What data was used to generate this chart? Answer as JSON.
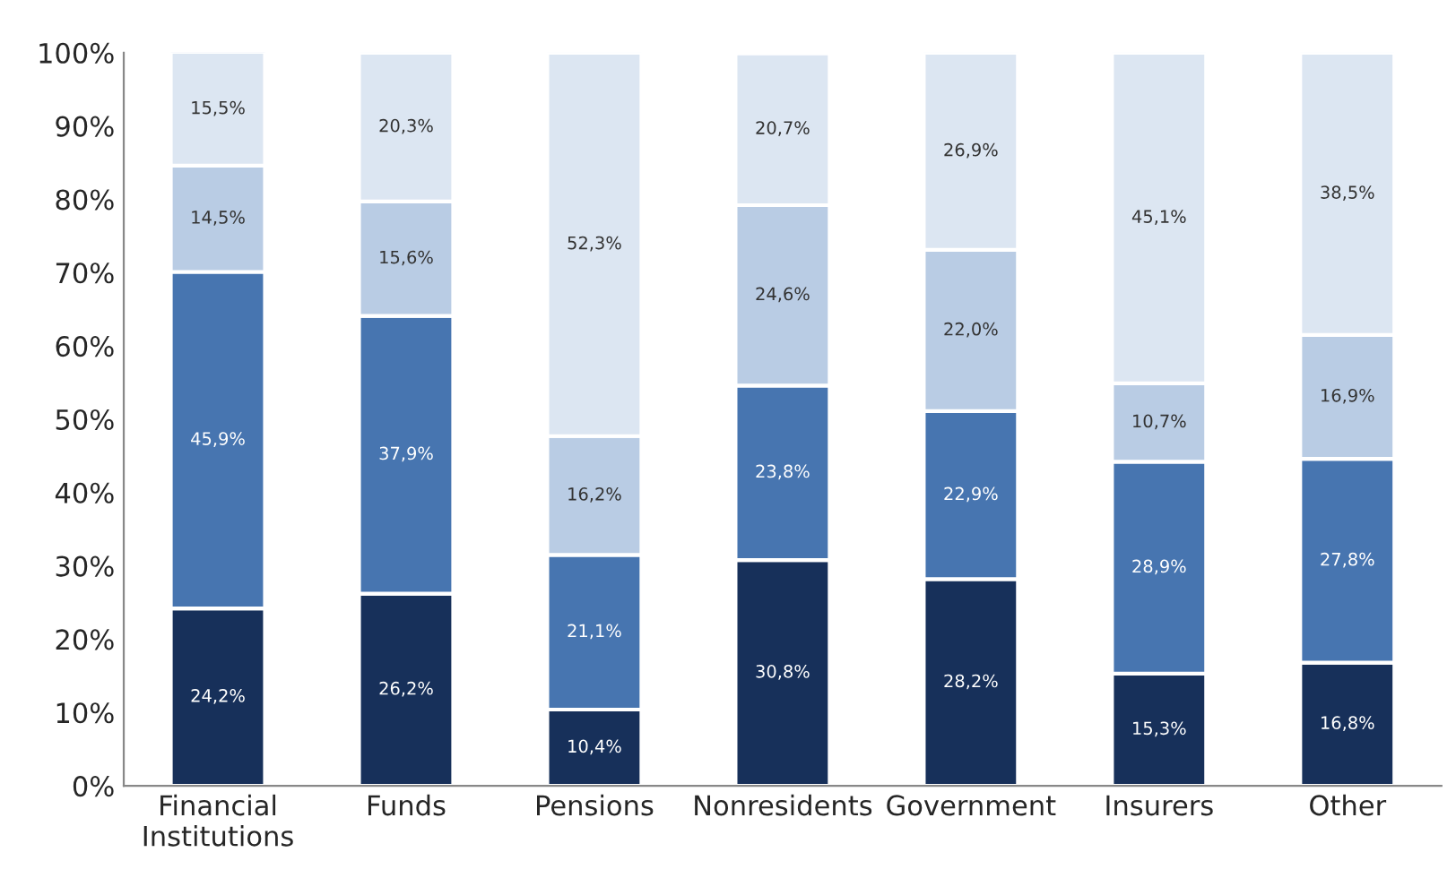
{
  "chart_data": {
    "type": "bar",
    "stacked": true,
    "categories": [
      "Financial\nInstitutions",
      "Funds",
      "Pensions",
      "Nonresidents",
      "Government",
      "Insurers",
      "Other"
    ],
    "series": [
      {
        "color": "#17305a",
        "values": [
          24.2,
          26.2,
          10.4,
          30.8,
          28.2,
          15.3,
          16.8
        ],
        "value_labels": [
          "24,2%",
          "26,2%",
          "10,4%",
          "30,8%",
          "28,2%",
          "15,3%",
          "16,8%"
        ]
      },
      {
        "color": "#4775b0",
        "values": [
          45.9,
          37.9,
          21.1,
          23.8,
          22.9,
          28.9,
          27.8
        ],
        "value_labels": [
          "45,9%",
          "37,9%",
          "21,1%",
          "23,8%",
          "22,9%",
          "28,9%",
          "27,8%"
        ]
      },
      {
        "color": "#b9cce4",
        "values": [
          14.5,
          15.6,
          16.2,
          24.6,
          22.0,
          10.7,
          16.9
        ],
        "value_labels": [
          "14,5%",
          "15,6%",
          "16,2%",
          "24,6%",
          "22,0%",
          "10,7%",
          "16,9%"
        ]
      },
      {
        "color": "#dce6f2",
        "values": [
          15.5,
          20.3,
          52.3,
          20.7,
          26.9,
          45.1,
          38.5
        ],
        "value_labels": [
          "15,5%",
          "20,3%",
          "52,3%",
          "20,7%",
          "26,9%",
          "45,1%",
          "38,5%"
        ]
      }
    ],
    "ylim": [
      0,
      100
    ],
    "yticks": [
      {
        "value": 0,
        "label": "0%"
      },
      {
        "value": 10,
        "label": "10%"
      },
      {
        "value": 20,
        "label": "20%"
      },
      {
        "value": 30,
        "label": "30%"
      },
      {
        "value": 40,
        "label": "40%"
      },
      {
        "value": 50,
        "label": "50%"
      },
      {
        "value": 60,
        "label": "60%"
      },
      {
        "value": 70,
        "label": "70%"
      },
      {
        "value": 80,
        "label": "80%"
      },
      {
        "value": 90,
        "label": "90%"
      },
      {
        "value": 100,
        "label": "100%"
      }
    ],
    "grid": false,
    "legend": false
  }
}
